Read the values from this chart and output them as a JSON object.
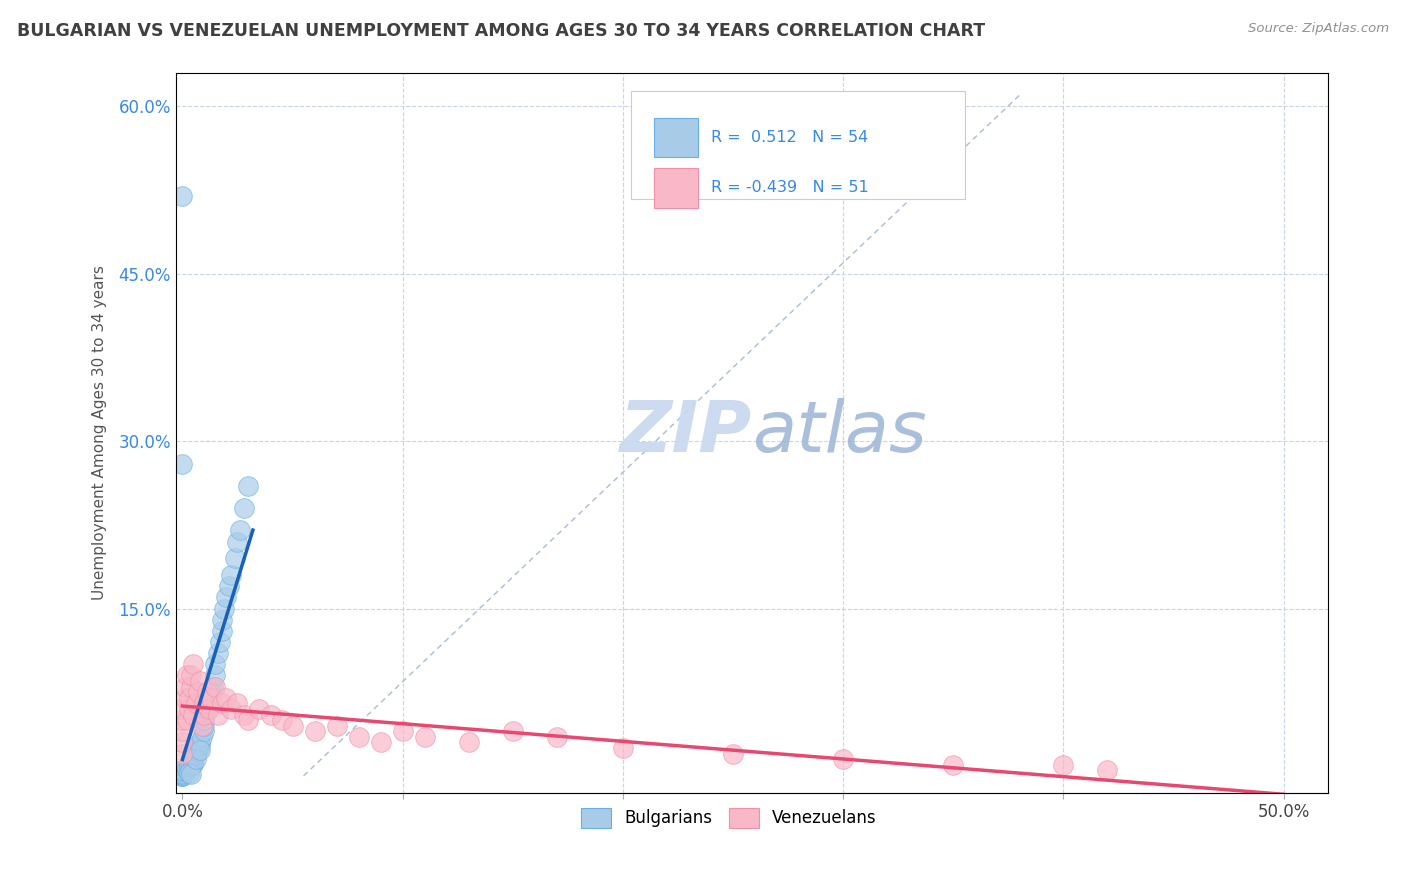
{
  "title": "BULGARIAN VS VENEZUELAN UNEMPLOYMENT AMONG AGES 30 TO 34 YEARS CORRELATION CHART",
  "source": "Source: ZipAtlas.com",
  "ylabel": "Unemployment Among Ages 30 to 34 years",
  "bg_color": "#ffffff",
  "grid_color": "#c8d4e8",
  "blue_color": "#6aaee8",
  "pink_color": "#f090a8",
  "blue_fill": "#a8cce8",
  "pink_fill": "#f8b8c8",
  "ref_line_color": "#a8bcd8",
  "blue_reg_color": "#1860b8",
  "pink_reg_color": "#e84870",
  "watermark_zip_color": "#c8d8f0",
  "watermark_atlas_color": "#a0b8d8",
  "legend_R1": "R =  0.512",
  "legend_N1": "N = 54",
  "legend_R2": "R = -0.439",
  "legend_N2": "N = 51",
  "yaxis_tick_color": "#3888e8",
  "title_color": "#404040",
  "source_color": "#909090"
}
